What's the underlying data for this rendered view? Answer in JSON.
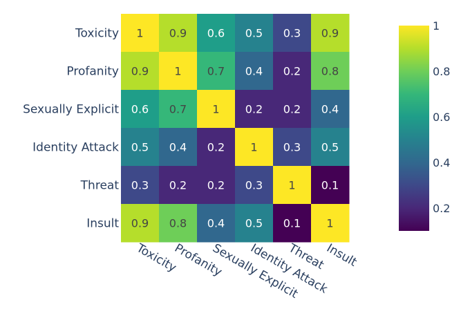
{
  "chart_data": {
    "type": "heatmap",
    "x": [
      "Toxicity",
      "Profanity",
      "Sexually Explicit",
      "Identity Attack",
      "Threat",
      "Insult"
    ],
    "y": [
      "Toxicity",
      "Profanity",
      "Sexually Explicit",
      "Identity Attack",
      "Threat",
      "Insult"
    ],
    "z": [
      [
        1,
        0.9,
        0.6,
        0.5,
        0.3,
        0.9
      ],
      [
        0.9,
        1,
        0.7,
        0.4,
        0.2,
        0.8
      ],
      [
        0.6,
        0.7,
        1,
        0.2,
        0.2,
        0.4
      ],
      [
        0.5,
        0.4,
        0.2,
        1,
        0.3,
        0.5
      ],
      [
        0.3,
        0.2,
        0.2,
        0.3,
        1,
        0.1
      ],
      [
        0.9,
        0.8,
        0.4,
        0.5,
        0.1,
        1
      ]
    ],
    "zmin": 0.1,
    "zmax": 1,
    "colorscale": "Viridis",
    "text_auto": true,
    "colorbar": {
      "tickvals": [
        1,
        0.8,
        0.6,
        0.4,
        0.2
      ],
      "ticktext": [
        "1",
        "0.8",
        "0.6",
        "0.4",
        "0.2"
      ],
      "placement": "right"
    }
  }
}
